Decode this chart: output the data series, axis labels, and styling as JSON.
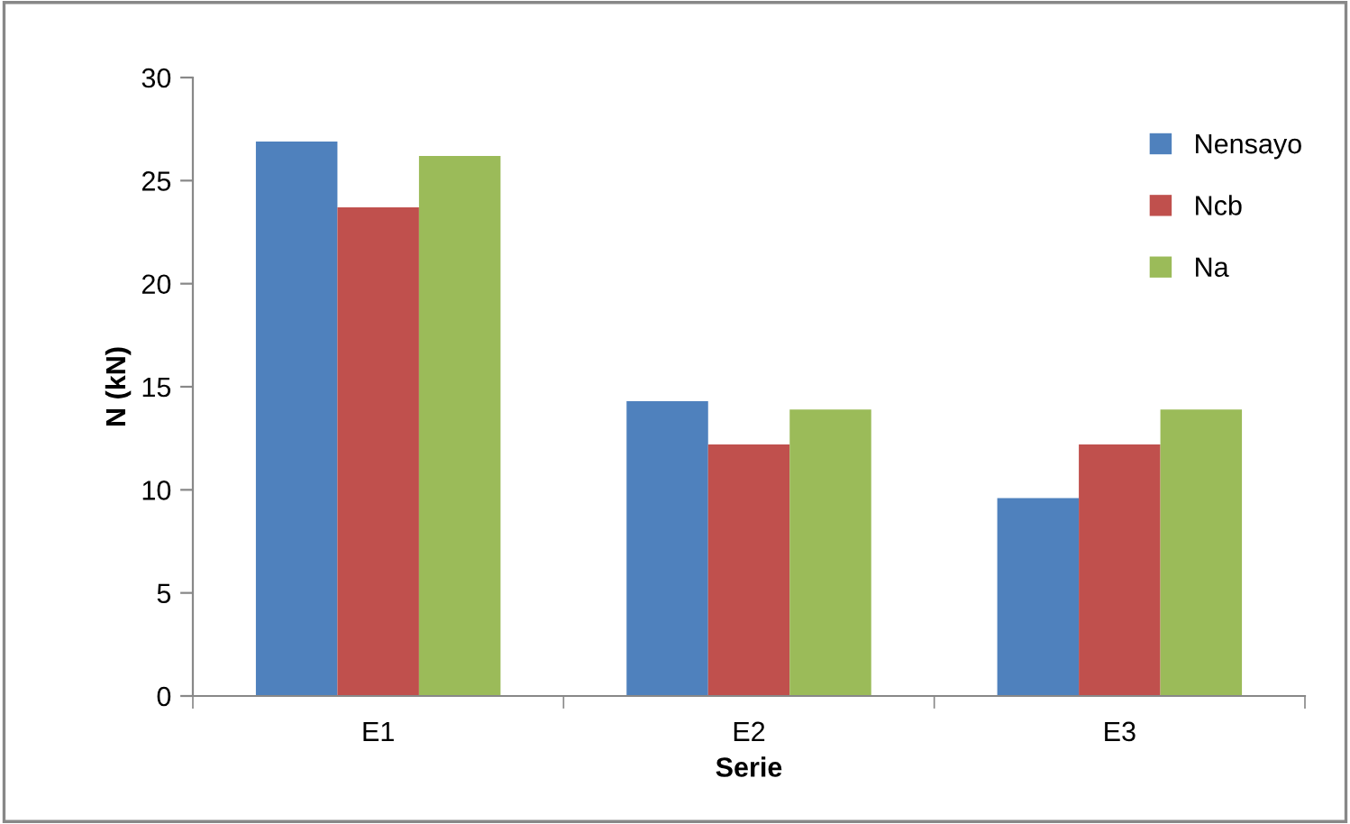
{
  "chart_data": {
    "type": "bar",
    "xlabel": "Serie",
    "ylabel": "N (kN)",
    "categories": [
      "E1",
      "E2",
      "E3"
    ],
    "series": [
      {
        "name": "Nensayo",
        "color": "#4f81bd",
        "values": [
          26.9,
          14.3,
          9.6
        ]
      },
      {
        "name": "Ncb",
        "color": "#c0504d",
        "values": [
          23.7,
          12.2,
          12.2
        ]
      },
      {
        "name": "Na",
        "color": "#9bbb59",
        "values": [
          26.2,
          13.9,
          13.9
        ]
      }
    ],
    "ylim": [
      0,
      30
    ],
    "yticks": [
      0,
      5,
      10,
      15,
      20,
      25,
      30
    ],
    "grid": false,
    "legend": "top right"
  }
}
